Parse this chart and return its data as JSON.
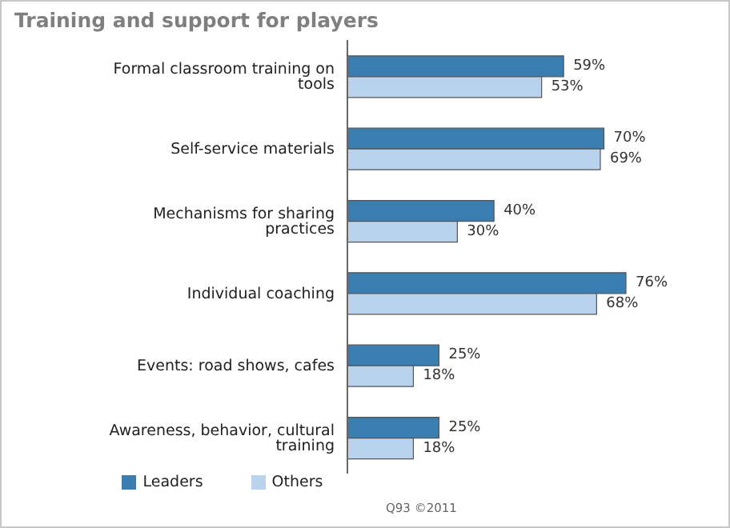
{
  "chart_data": {
    "type": "bar",
    "orientation": "horizontal",
    "title": "Training and support for players",
    "categories": [
      "Formal classroom training on tools",
      "Self-service materials",
      "Mechanisms for sharing practices",
      "Individual coaching",
      "Events: road shows, cafes",
      "Awareness, behavior, cultural training"
    ],
    "series": [
      {
        "name": "Leaders",
        "color": "#3a7db0",
        "values": [
          59,
          70,
          40,
          76,
          25,
          25
        ],
        "value_labels": [
          "59%",
          "70%",
          "40%",
          "76%",
          "25%",
          "25%"
        ]
      },
      {
        "name": "Others",
        "color": "#b9d3ec",
        "values": [
          53,
          69,
          30,
          68,
          18,
          18
        ],
        "value_labels": [
          "53%",
          "69%",
          "30%",
          "68%",
          "18%",
          "18%"
        ]
      }
    ],
    "legend": "bottom",
    "grid": false,
    "annotations": [
      "Q93 ©2011"
    ]
  }
}
